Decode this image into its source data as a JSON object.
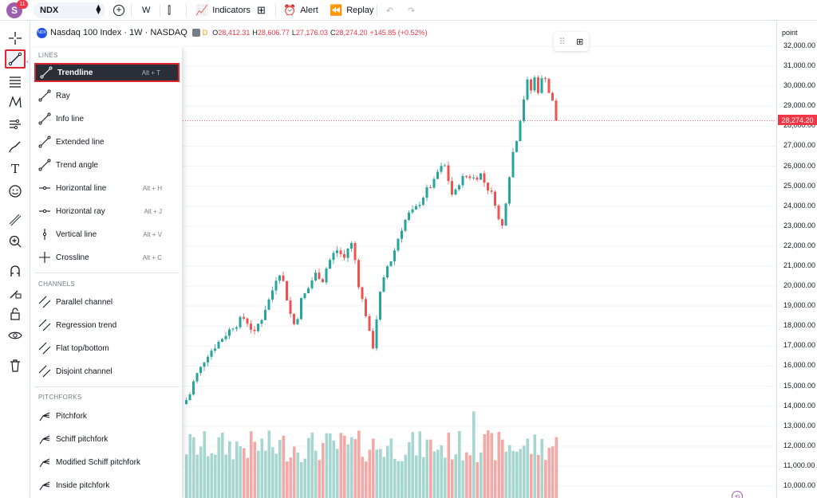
{
  "topbar": {
    "avatar_letter": "S",
    "avatar_badge": "11",
    "symbol": "NDX",
    "interval": "W",
    "indicators_label": "Indicators",
    "alert_label": "Alert",
    "replay_label": "Replay"
  },
  "legend": {
    "logo_text": "NDX",
    "title": "Nasdaq 100 Index · 1W · NASDAQ",
    "dot_label": "D",
    "open_label": "O",
    "open": "28,412.31",
    "high_label": "H",
    "high": "28,606.77",
    "low_label": "L",
    "low": "27,176.03",
    "close_label": "C",
    "close": "28,274.20",
    "change": "+145.85 (+0.52%)"
  },
  "left_tools": [
    "crosshair-icon",
    "trendline-icon",
    "fib-icon",
    "pattern-icon",
    "forecast-icon",
    "brush-icon",
    "text-icon",
    "emoji-icon",
    "ruler-icon",
    "zoom-icon",
    "magnet-icon",
    "lock-drawing-icon",
    "lock-icon",
    "eye-icon",
    "trash-icon"
  ],
  "dropdown": {
    "sections": {
      "lines": "LINES",
      "channels": "CHANNELS",
      "pitchforks": "PITCHFORKS"
    },
    "lines": [
      {
        "label": "Trendline",
        "key": "Alt + T",
        "icon": "trendline-icon"
      },
      {
        "label": "Ray",
        "key": "",
        "icon": "ray-icon"
      },
      {
        "label": "Info line",
        "key": "",
        "icon": "info-line-icon"
      },
      {
        "label": "Extended line",
        "key": "",
        "icon": "extended-line-icon"
      },
      {
        "label": "Trend angle",
        "key": "",
        "icon": "trend-angle-icon"
      },
      {
        "label": "Horizontal line",
        "key": "Alt + H",
        "icon": "horizontal-line-icon"
      },
      {
        "label": "Horizontal ray",
        "key": "Alt + J",
        "icon": "horizontal-ray-icon"
      },
      {
        "label": "Vertical line",
        "key": "Alt + V",
        "icon": "vertical-line-icon"
      },
      {
        "label": "Crossline",
        "key": "Alt + C",
        "icon": "crossline-icon"
      }
    ],
    "channels": [
      {
        "label": "Parallel channel",
        "icon": "parallel-channel-icon"
      },
      {
        "label": "Regression trend",
        "icon": "regression-trend-icon"
      },
      {
        "label": "Flat top/bottom",
        "icon": "flat-top-bottom-icon"
      },
      {
        "label": "Disjoint channel",
        "icon": "disjoint-channel-icon"
      }
    ],
    "pitchforks": [
      {
        "label": "Pitchfork",
        "icon": "pitchfork-icon"
      },
      {
        "label": "Schiff pitchfork",
        "icon": "schiff-pitchfork-icon"
      },
      {
        "label": "Modified Schiff pitchfork",
        "icon": "modified-schiff-pitchfork-icon"
      },
      {
        "label": "Inside pitchfork",
        "icon": "inside-pitchfork-icon"
      }
    ]
  },
  "axis": {
    "unit": "point",
    "ticks": [
      "32,000.00",
      "31,000.00",
      "30,000.00",
      "29,000.00",
      "28,000.00",
      "27,000.00",
      "26,000.00",
      "25,000.00",
      "24,000.00",
      "23,000.00",
      "22,000.00",
      "21,000.00",
      "20,000.00",
      "19,000.00",
      "18,000.00",
      "17,000.00",
      "16,000.00",
      "15,000.00",
      "14,000.00",
      "13,000.00",
      "12,000.00",
      "11,000.00",
      "10,000.00"
    ],
    "last_price": "28,274.20"
  },
  "colors": {
    "up": "#26a69a",
    "down": "#ef5350",
    "accent_red": "#f23645"
  },
  "chart_data": {
    "type": "candlestick",
    "series_trend": [
      14300,
      14600,
      15200,
      15600,
      15900,
      16300,
      16600,
      16800,
      17000,
      17200,
      17400,
      17600,
      17800,
      18000,
      18100,
      18300,
      18400,
      18200,
      17900,
      17600,
      18100,
      18400,
      18900,
      19300,
      19800,
      20400,
      20700,
      20200,
      19400,
      18600,
      18100,
      18500,
      19300,
      19600,
      19900,
      20300,
      20600,
      20500,
      20300,
      20900,
      21300,
      21600,
      21800,
      21600,
      21400,
      21900,
      22100,
      21300,
      20100,
      19300,
      18600,
      17600,
      17000,
      18400,
      19600,
      20300,
      21000,
      21300,
      21800,
      22400,
      22900,
      23300,
      23600,
      23700,
      23900,
      24200,
      24500,
      24800,
      25000,
      25200,
      25700,
      25900,
      26000,
      25300,
      24600,
      24700,
      25200,
      25400,
      25500,
      25500,
      25400,
      25500,
      25600,
      25200,
      24900,
      24600,
      24200,
      23300,
      23000,
      24300,
      25600,
      26700,
      27400,
      28400,
      29400,
      30200,
      29800,
      30400,
      29800,
      30300,
      30500,
      29700,
      29200,
      28300
    ],
    "ylim": [
      10000,
      32000
    ]
  }
}
